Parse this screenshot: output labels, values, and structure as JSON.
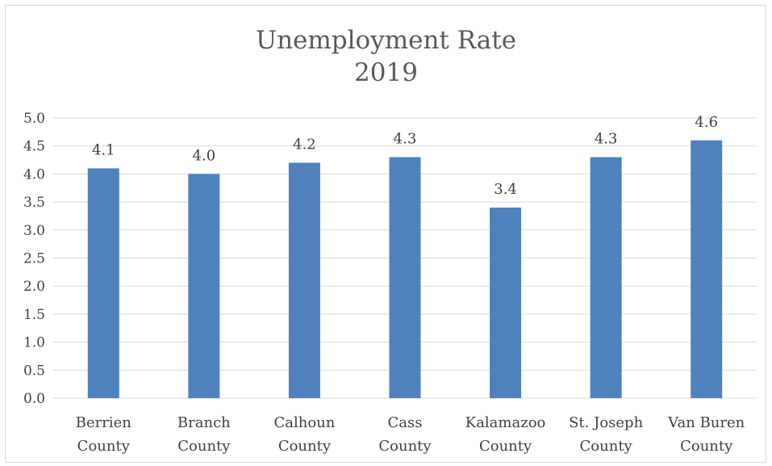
{
  "chart_data": {
    "type": "bar",
    "title_line1": "Unemployment Rate",
    "title_line2": "2019",
    "categories": [
      [
        "Berrien",
        "County"
      ],
      [
        "Branch",
        "County"
      ],
      [
        "Calhoun",
        "County"
      ],
      [
        "Cass",
        "County"
      ],
      [
        "Kalamazoo",
        "County"
      ],
      [
        "St. Joseph",
        "County"
      ],
      [
        "Van Buren",
        "County"
      ]
    ],
    "values": [
      4.1,
      4.0,
      4.2,
      4.3,
      3.4,
      4.3,
      4.6
    ],
    "data_labels": [
      "4.1",
      "4.0",
      "4.2",
      "4.3",
      "3.4",
      "4.3",
      "4.6"
    ],
    "yticks": [
      "0.0",
      "0.5",
      "1.0",
      "1.5",
      "2.0",
      "2.5",
      "3.0",
      "3.5",
      "4.0",
      "4.5",
      "5.0"
    ],
    "ylim": [
      0,
      5
    ],
    "xlabel": "",
    "ylabel": "",
    "grid": true,
    "legend": "none",
    "bar_color": "#4f81bd",
    "grid_color": "#d9d9d9"
  }
}
